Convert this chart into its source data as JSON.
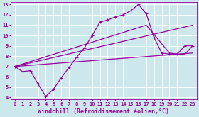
{
  "title": "",
  "xlabel": "Windchill (Refroidissement éolien,°C)",
  "ylabel": "",
  "xlim": [
    -0.5,
    23.5
  ],
  "ylim": [
    3.8,
    13.2
  ],
  "xticks": [
    0,
    1,
    2,
    3,
    4,
    5,
    6,
    7,
    8,
    9,
    10,
    11,
    12,
    13,
    14,
    15,
    16,
    17,
    18,
    19,
    20,
    21,
    22,
    23
  ],
  "yticks": [
    4,
    5,
    6,
    7,
    8,
    9,
    10,
    11,
    12,
    13
  ],
  "bg_color": "#cce8ec",
  "grid_color": "#ffffff",
  "line_color": "#990099",
  "line1_x": [
    0,
    1,
    2,
    3,
    4,
    5,
    6,
    7,
    8,
    9,
    10,
    11,
    12,
    13,
    14,
    15,
    16,
    17,
    18,
    19,
    20,
    21,
    22,
    23
  ],
  "line1_y": [
    7.0,
    6.5,
    6.6,
    5.3,
    4.1,
    4.8,
    5.9,
    6.9,
    7.9,
    8.8,
    10.0,
    11.3,
    11.5,
    11.8,
    12.0,
    12.4,
    13.0,
    12.1,
    9.8,
    8.3,
    8.2,
    8.2,
    9.0,
    9.0
  ],
  "line2_x": [
    0,
    17,
    20,
    21,
    22,
    23
  ],
  "line2_y": [
    7.0,
    11.0,
    8.3,
    8.2,
    8.2,
    9.0
  ],
  "line3_x": [
    0,
    23
  ],
  "line3_y": [
    7.0,
    11.0
  ],
  "line4_x": [
    0,
    23
  ],
  "line4_y": [
    7.0,
    8.3
  ],
  "marker": "D",
  "markersize": 2.5,
  "linewidth": 0.9,
  "tick_fontsize": 5.0,
  "xlabel_fontsize": 6.0
}
